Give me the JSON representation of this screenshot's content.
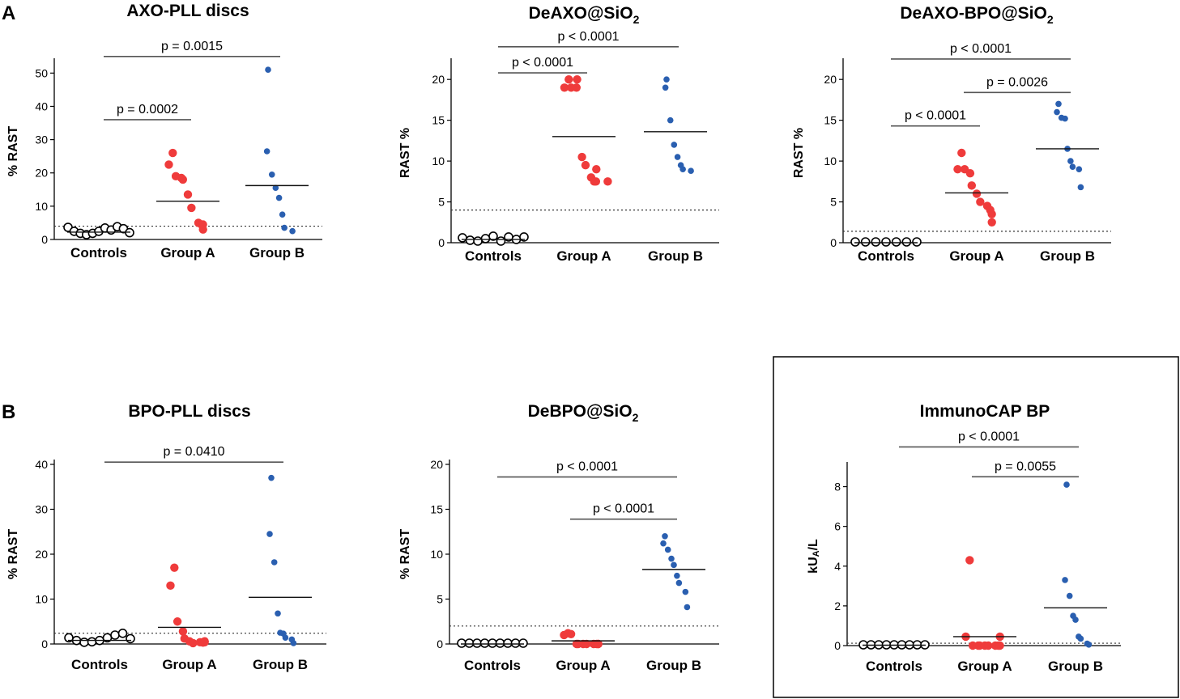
{
  "panel_labels": [
    "A",
    "B"
  ],
  "colors": {
    "controls": "#000000",
    "group_a": "#ef3b3b",
    "group_b": "#2a5fb0",
    "bracket": "#555555",
    "axis": "#000000"
  },
  "chart_data": [
    {
      "id": "axo-pll",
      "type": "scatter",
      "title": "AXO-PLL discs",
      "title_sub": "",
      "ylabel": "% RAST",
      "ylim": [
        0,
        53
      ],
      "yticks": [
        0,
        10,
        20,
        30,
        40,
        50
      ],
      "categories": [
        "Controls",
        "Group A",
        "Group B"
      ],
      "threshold": 4,
      "means": [
        2.2,
        11.5,
        16.2
      ],
      "series": [
        {
          "name": "Controls",
          "values": [
            3.4,
            2.2,
            1.6,
            1.2,
            1.6,
            2.2,
            3.2,
            2.6,
            3.6,
            3.0,
            1.8
          ]
        },
        {
          "name": "Group A",
          "values": [
            26,
            22.5,
            19,
            18.5,
            18,
            13.5,
            9.5,
            5,
            4.5,
            4.5,
            3
          ]
        },
        {
          "name": "Group B",
          "values": [
            51,
            26.5,
            19.5,
            15.5,
            12.5,
            7.5,
            3.5,
            2.5
          ]
        }
      ],
      "brackets": [
        {
          "from": 0,
          "to": 1,
          "y": 36,
          "label": "p = 0.0002"
        },
        {
          "from": 0,
          "to": 2,
          "y": 55,
          "label": "p = 0.0015"
        }
      ]
    },
    {
      "id": "deaxo-sio2",
      "type": "scatter",
      "title": "DeAXO@SiO",
      "title_sub": "2",
      "ylabel": "RAST %",
      "ylim": [
        0,
        22
      ],
      "yticks": [
        0,
        5,
        10,
        15,
        20
      ],
      "categories": [
        "Controls",
        "Group A",
        "Group B"
      ],
      "threshold": 4,
      "means": [
        0.4,
        13,
        13.6
      ],
      "series": [
        {
          "name": "Controls",
          "values": [
            0.5,
            0.2,
            0.1,
            0.4,
            0.7,
            0.1,
            0.6,
            0.3,
            0.6
          ]
        },
        {
          "name": "Group A",
          "values": [
            20,
            19,
            19,
            19,
            20,
            10.5,
            9.5,
            8,
            7.5,
            7.5,
            9,
            7.5
          ]
        },
        {
          "name": "Group B",
          "values": [
            20,
            19,
            15,
            12,
            10.5,
            9.5,
            9,
            8.8
          ]
        }
      ],
      "brackets": [
        {
          "from": 0,
          "to": 1,
          "y": 20.8,
          "label": "p < 0.0001"
        },
        {
          "from": 0,
          "to": 2,
          "y": 24,
          "label": "p < 0.0001"
        }
      ]
    },
    {
      "id": "deaxo-bpo-sio2",
      "type": "scatter",
      "title": "DeAXO-BPO@SiO",
      "title_sub": "2",
      "ylabel": "RAST %",
      "ylim": [
        0,
        22
      ],
      "yticks": [
        0,
        5,
        10,
        15,
        20
      ],
      "categories": [
        "Controls",
        "Group A",
        "Group B"
      ],
      "threshold": 1.4,
      "means": [
        0,
        6.1,
        11.5
      ],
      "series": [
        {
          "name": "Controls",
          "values": [
            0,
            0,
            0,
            0,
            0,
            0,
            0
          ]
        },
        {
          "name": "Group A",
          "values": [
            11,
            9,
            9,
            8.5,
            7,
            6,
            5,
            4.5,
            4,
            3.5,
            2.5
          ]
        },
        {
          "name": "Group B",
          "values": [
            17,
            16,
            15.3,
            15.2,
            11.5,
            10,
            9.3,
            9,
            6.8
          ]
        }
      ],
      "brackets": [
        {
          "from": 0,
          "to": 1,
          "y": 14.3,
          "label": "p < 0.0001"
        },
        {
          "from": 1,
          "to": 2,
          "y": 18.4,
          "label": "p = 0.0026"
        },
        {
          "from": 0,
          "to": 2,
          "y": 22.5,
          "label": "p < 0.0001"
        }
      ]
    },
    {
      "id": "bpo-pll",
      "type": "scatter",
      "title": "BPO-PLL discs",
      "title_sub": "",
      "ylabel": "% RAST",
      "ylim": [
        0,
        40
      ],
      "yticks": [
        0,
        10,
        20,
        30,
        40
      ],
      "categories": [
        "Controls",
        "Group A",
        "Group B"
      ],
      "threshold": 2.4,
      "means": [
        0.8,
        3.7,
        10.4
      ],
      "series": [
        {
          "name": "Controls",
          "values": [
            1.2,
            0.6,
            0.2,
            0.3,
            0.6,
            1.2,
            1.8,
            2.2,
            1.0
          ]
        },
        {
          "name": "Group A",
          "values": [
            17,
            13,
            5,
            2.8,
            1.2,
            0.6,
            0.2,
            0.4,
            0.3,
            0.6,
            0.4
          ]
        },
        {
          "name": "Group B",
          "values": [
            37,
            24.5,
            18.2,
            6.8,
            2.5,
            2.3,
            1.4,
            1.0,
            0.2
          ]
        }
      ],
      "brackets": [
        {
          "from": 0,
          "to": 2,
          "y": 40.5,
          "label": "p = 0.0410"
        }
      ]
    },
    {
      "id": "debpo-sio2",
      "type": "scatter",
      "title": "DeBPO@SiO",
      "title_sub": "2",
      "ylabel": "% RAST",
      "ylim": [
        0,
        20
      ],
      "yticks": [
        0,
        5,
        10,
        15,
        20
      ],
      "categories": [
        "Controls",
        "Group A",
        "Group B"
      ],
      "threshold": 2,
      "means": [
        0,
        0.35,
        8.3
      ],
      "series": [
        {
          "name": "Controls",
          "values": [
            0,
            0,
            0,
            0,
            0,
            0,
            0,
            0,
            0
          ]
        },
        {
          "name": "Group A",
          "values": [
            1.2,
            1.0,
            1.1,
            0,
            0,
            0,
            0,
            0,
            0,
            0,
            0
          ]
        },
        {
          "name": "Group B",
          "values": [
            12,
            11.2,
            10.5,
            9.5,
            8.8,
            7.6,
            6.8,
            5.8,
            4.1
          ]
        }
      ],
      "brackets": [
        {
          "from": 1,
          "to": 2,
          "y": 13.9,
          "label": "p < 0.0001"
        },
        {
          "from": 0,
          "to": 2,
          "y": 18.6,
          "label": "p < 0.0001"
        }
      ]
    },
    {
      "id": "immunocap-bp",
      "type": "scatter",
      "title": "ImmunoCAP BP",
      "title_sub": "",
      "ylabel": "kU",
      "ylabel_sub": "A",
      "ylabel_tail": "/L",
      "ylim": [
        0,
        9
      ],
      "yticks": [
        0,
        2,
        4,
        6,
        8
      ],
      "categories": [
        "Controls",
        "Group A",
        "Group B"
      ],
      "threshold": 0.12,
      "means": [
        0.02,
        0.45,
        1.9
      ],
      "series": [
        {
          "name": "Controls",
          "values": [
            0,
            0,
            0,
            0,
            0,
            0,
            0,
            0,
            0
          ]
        },
        {
          "name": "Group A",
          "values": [
            4.3,
            0.45,
            0,
            0,
            0,
            0,
            0,
            0,
            0,
            0,
            0.45
          ]
        },
        {
          "name": "Group B",
          "values": [
            8.1,
            3.3,
            2.5,
            1.5,
            1.3,
            0.45,
            0.35,
            0.1,
            0.05
          ]
        }
      ],
      "brackets": [
        {
          "from": 1,
          "to": 2,
          "y": 8.5,
          "label": "p = 0.0055"
        },
        {
          "from": 0,
          "to": 2,
          "y": 10,
          "label": "p < 0.0001"
        }
      ]
    }
  ]
}
